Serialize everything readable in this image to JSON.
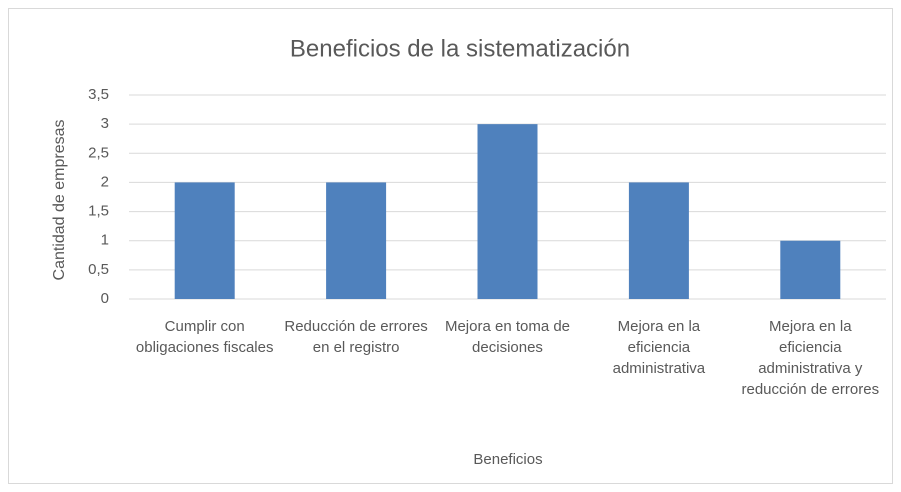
{
  "chart_data": {
    "type": "bar",
    "title": "Beneficios de la sistematización",
    "x_label": "Beneficios",
    "y_label": "Cantidad de empresas",
    "categories": [
      "Cumplir con obligaciones fiscales",
      "Reducción de errores en el registro",
      "Mejora en toma de decisiones",
      "Mejora en la eficiencia administrativa",
      "Mejora en la eficiencia administrativa y reducción de errores"
    ],
    "values": [
      2,
      2,
      3,
      2,
      1
    ],
    "color": "#4f81bd",
    "ylim": [
      0,
      3.5
    ],
    "yticks": [
      0,
      {
        "value": 0.5,
        "label": "0,5"
      },
      1,
      {
        "value": 1.5,
        "label": "1,5"
      },
      2,
      {
        "value": 2.5,
        "label": "2,5"
      },
      3,
      {
        "value": 3.5,
        "label": "3,5"
      }
    ],
    "grid": true
  }
}
